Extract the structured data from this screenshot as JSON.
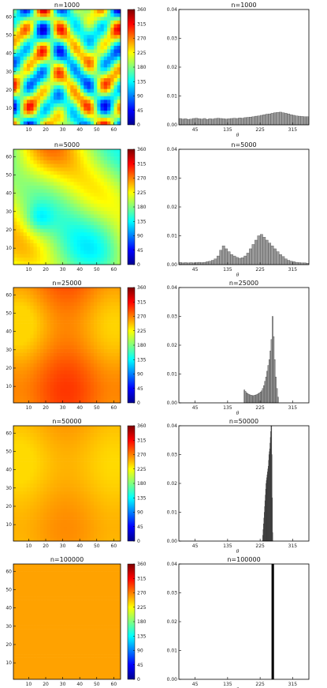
{
  "colormap": {
    "ticks": [
      "0",
      "45",
      "90",
      "135",
      "180",
      "225",
      "270",
      "315",
      "360"
    ],
    "stops": [
      "#00008f",
      "#0000ff",
      "#0080ff",
      "#00ffff",
      "#80ff80",
      "#ffff00",
      "#ff8000",
      "#ff0000",
      "#800000"
    ]
  },
  "chart_data": [
    {
      "type": "heatmap",
      "title": "n=1000",
      "xticks": [
        "10",
        "20",
        "30",
        "40",
        "50",
        "60"
      ],
      "yticks": [
        "10",
        "20",
        "30",
        "40",
        "50",
        "60"
      ],
      "xlim": [
        1,
        64
      ],
      "ylim": [
        1,
        64
      ],
      "colorbar_range": [
        0,
        360
      ],
      "smoothness": 4,
      "base_level": 180,
      "amplitude": 170
    },
    {
      "type": "bar",
      "title": "n=1000",
      "xlabel": "θ",
      "xticks": [
        "45",
        "135",
        "225",
        "315"
      ],
      "yticks": [
        "0.00",
        "0.01",
        "0.02",
        "0.03",
        "0.04"
      ],
      "ylim": [
        0,
        0.04
      ],
      "x_start": 0,
      "bin_width": 7.5,
      "values": [
        0.0022,
        0.002,
        0.0021,
        0.0019,
        0.002,
        0.0022,
        0.0023,
        0.0021,
        0.002,
        0.0022,
        0.0019,
        0.0021,
        0.002,
        0.0022,
        0.0023,
        0.0022,
        0.0021,
        0.002,
        0.0021,
        0.0022,
        0.0023,
        0.0022,
        0.0024,
        0.0023,
        0.0025,
        0.0026,
        0.0027,
        0.0028,
        0.003,
        0.0031,
        0.0033,
        0.0035,
        0.0037,
        0.0038,
        0.004,
        0.0042,
        0.0043,
        0.0044,
        0.0042,
        0.004,
        0.0038,
        0.0035,
        0.0033,
        0.0031,
        0.003,
        0.0029,
        0.0028,
        0.0028
      ]
    },
    {
      "type": "heatmap",
      "title": "n=5000",
      "xticks": [
        "10",
        "20",
        "30",
        "40",
        "50",
        "60"
      ],
      "yticks": [
        "10",
        "20",
        "30",
        "40",
        "50",
        "60"
      ],
      "xlim": [
        1,
        64
      ],
      "ylim": [
        1,
        64
      ],
      "colorbar_range": [
        0,
        360
      ],
      "smoothness": 2.2,
      "base_level": 200,
      "amplitude": 150
    },
    {
      "type": "bar",
      "title": "n=5000",
      "xlabel": "θ",
      "xticks": [
        "45",
        "135",
        "225",
        "315"
      ],
      "yticks": [
        "0.00",
        "0.01",
        "0.02",
        "0.03",
        "0.04"
      ],
      "ylim": [
        0,
        0.04
      ],
      "x_start": 0,
      "bin_width": 7.5,
      "values": [
        0.0008,
        0.0006,
        0.0007,
        0.0006,
        0.0007,
        0.0006,
        0.0007,
        0.0008,
        0.0007,
        0.0008,
        0.001,
        0.0012,
        0.0015,
        0.002,
        0.003,
        0.005,
        0.0065,
        0.0055,
        0.0045,
        0.0035,
        0.003,
        0.0025,
        0.0022,
        0.0024,
        0.003,
        0.004,
        0.0055,
        0.007,
        0.0085,
        0.01,
        0.0105,
        0.0095,
        0.0085,
        0.0075,
        0.0065,
        0.0055,
        0.0045,
        0.0035,
        0.0028,
        0.002,
        0.0015,
        0.0012,
        0.001,
        0.0008,
        0.0007,
        0.0006,
        0.0006,
        0.0005
      ]
    },
    {
      "type": "heatmap",
      "title": "n=25000",
      "xticks": [
        "10",
        "20",
        "30",
        "40",
        "50",
        "60"
      ],
      "yticks": [
        "10",
        "20",
        "30",
        "40",
        "50",
        "60"
      ],
      "xlim": [
        1,
        64
      ],
      "ylim": [
        1,
        64
      ],
      "colorbar_range": [
        0,
        360
      ],
      "smoothness": 1,
      "base_level": 268,
      "amplitude": 28
    },
    {
      "type": "bar",
      "title": "n=25000",
      "xlabel": "θ",
      "xticks": [
        "45",
        "135",
        "225",
        "315"
      ],
      "yticks": [
        "0.00",
        "0.01",
        "0.02",
        "0.03",
        "0.04"
      ],
      "ylim": [
        0,
        0.04
      ],
      "x_start": 180,
      "bin_width": 3,
      "values": [
        0.0045,
        0.004,
        0.0035,
        0.0032,
        0.003,
        0.0028,
        0.0027,
        0.0026,
        0.0025,
        0.0026,
        0.0027,
        0.0028,
        0.003,
        0.0032,
        0.0035,
        0.0038,
        0.0042,
        0.005,
        0.006,
        0.0075,
        0.009,
        0.011,
        0.013,
        0.015,
        0.018,
        0.022,
        0.03,
        0.023,
        0.015,
        0.009,
        0.005,
        0.002
      ]
    },
    {
      "type": "heatmap",
      "title": "n=50000",
      "xticks": [
        "10",
        "20",
        "30",
        "40",
        "50",
        "60"
      ],
      "yticks": [
        "10",
        "20",
        "30",
        "40",
        "50",
        "60"
      ],
      "xlim": [
        1,
        64
      ],
      "ylim": [
        1,
        64
      ],
      "colorbar_range": [
        0,
        360
      ],
      "smoothness": 1,
      "base_level": 252,
      "amplitude": 14
    },
    {
      "type": "bar",
      "title": "n=50000",
      "xlabel": "θ",
      "xticks": [
        "45",
        "135",
        "225",
        "315"
      ],
      "yticks": [
        "0.00",
        "0.01",
        "0.02",
        "0.03",
        "0.04"
      ],
      "ylim": [
        0,
        0.04
      ],
      "x_start": 232,
      "bin_width": 1,
      "values": [
        0.002,
        0.004,
        0.006,
        0.008,
        0.01,
        0.012,
        0.014,
        0.016,
        0.018,
        0.02,
        0.021,
        0.022,
        0.023,
        0.024,
        0.025,
        0.026,
        0.028,
        0.03,
        0.031,
        0.032,
        0.034,
        0.036,
        0.038,
        0.04,
        0.042,
        0.03,
        0.015,
        0.003
      ]
    },
    {
      "type": "heatmap",
      "title": "n=100000",
      "xticks": [
        "10",
        "20",
        "30",
        "40",
        "50",
        "60"
      ],
      "yticks": [
        "10",
        "20",
        "30",
        "40",
        "50",
        "60"
      ],
      "xlim": [
        1,
        64
      ],
      "ylim": [
        1,
        64
      ],
      "colorbar_range": [
        0,
        360
      ],
      "smoothness": 0,
      "base_level": 258,
      "amplitude": 0
    },
    {
      "type": "bar",
      "title": "n=100000",
      "xlabel": "θ",
      "xticks": [
        "45",
        "135",
        "225",
        "315"
      ],
      "yticks": [
        "0.00",
        "0.01",
        "0.02",
        "0.03",
        "0.04"
      ],
      "ylim": [
        0,
        0.04
      ],
      "x_start": 257,
      "bin_width": 6,
      "values": [
        0.2
      ]
    }
  ]
}
